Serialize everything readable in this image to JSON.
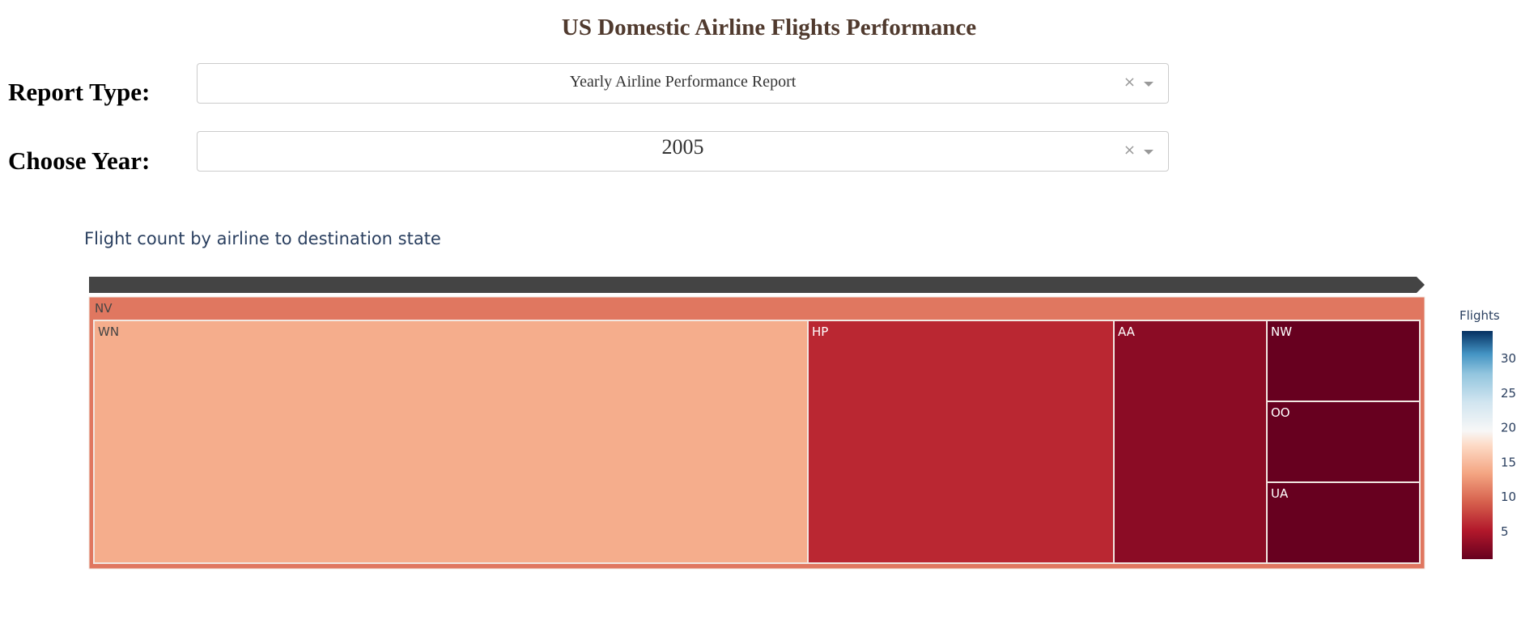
{
  "header": {
    "title": "US Domestic Airline Flights Performance"
  },
  "controls": {
    "report_type": {
      "label": "Report Type:",
      "value": "Yearly Airline Performance Report",
      "clear_icon": "×"
    },
    "year": {
      "label": "Choose Year:",
      "value": "2005",
      "clear_icon": "×"
    }
  },
  "chart_data": {
    "type": "treemap",
    "title": "Flight count by airline to destination state",
    "root": {
      "label": "NV",
      "color": "#e07760"
    },
    "nodes": [
      {
        "label": "WN",
        "value": 14
      },
      {
        "label": "HP",
        "value": 6
      },
      {
        "label": "AA",
        "value": 3
      },
      {
        "label": "NW",
        "value": 1
      },
      {
        "label": "OO",
        "value": 1
      },
      {
        "label": "UA",
        "value": 1
      }
    ],
    "colorbar": {
      "title": "Flights",
      "ticks": [
        30,
        25,
        20,
        15,
        10,
        5
      ],
      "range": [
        1,
        34
      ],
      "colorscale": "RdBu"
    },
    "colors": {
      "pathbar": "#444444",
      "border": "#f2e8e2"
    }
  }
}
